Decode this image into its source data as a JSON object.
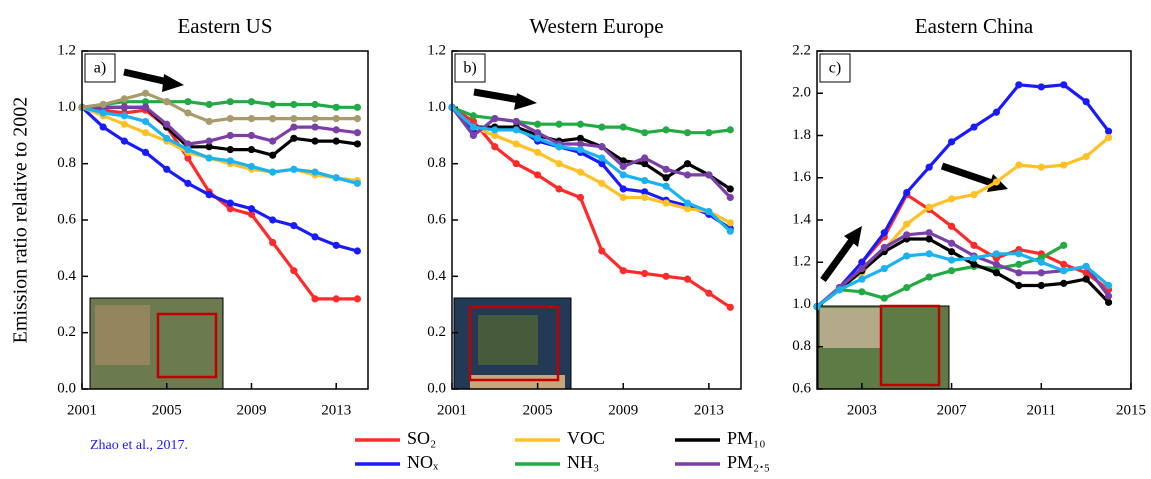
{
  "chart_data": [
    {
      "type": "line",
      "title": "Eastern US",
      "panel_label": "a)",
      "ylabel": "Emission ratio relative to 2002",
      "x": [
        2001,
        2002,
        2003,
        2004,
        2005,
        2006,
        2007,
        2008,
        2009,
        2010,
        2011,
        2012,
        2013,
        2014
      ],
      "xlim": [
        2001,
        2014.5
      ],
      "xticks": [
        2001,
        2005,
        2009,
        2013
      ],
      "ylim": [
        0,
        1.2
      ],
      "yticks": [
        {
          "value": 0,
          "label": "0.0"
        },
        {
          "value": 0.2,
          "label": "0.2"
        },
        {
          "value": 0.4,
          "label": "0.4"
        },
        {
          "value": 0.6,
          "label": "0.6"
        },
        {
          "value": 0.8,
          "label": "0.8"
        },
        {
          "value": 1,
          "label": "1.0"
        },
        {
          "value": 1.2,
          "label": "1.2"
        }
      ],
      "series": [
        {
          "name": "SO₂",
          "color": "#ff2a2a",
          "values": [
            1.0,
            0.99,
            0.98,
            0.99,
            0.93,
            0.82,
            0.7,
            0.64,
            0.62,
            0.52,
            0.42,
            0.32,
            0.32,
            0.32
          ]
        },
        {
          "name": "NOₓ",
          "color": "#1a1aff",
          "values": [
            1.0,
            0.93,
            0.88,
            0.84,
            0.78,
            0.73,
            0.69,
            0.66,
            0.64,
            0.6,
            0.58,
            0.54,
            0.51,
            0.49
          ]
        },
        {
          "name": "VOC",
          "color": "#ffc125",
          "values": [
            1.0,
            0.97,
            0.94,
            0.91,
            0.88,
            0.84,
            0.82,
            0.8,
            0.78,
            0.77,
            0.78,
            0.76,
            0.75,
            0.74
          ]
        },
        {
          "name": "NH₃",
          "color": "#22aa44",
          "values": [
            1.0,
            1.01,
            1.02,
            1.02,
            1.02,
            1.02,
            1.01,
            1.02,
            1.02,
            1.01,
            1.01,
            1.01,
            1.0,
            1.0
          ]
        },
        {
          "name": "PM₁₀",
          "color": "#000000",
          "values": [
            1.0,
            1.0,
            1.0,
            1.0,
            0.93,
            0.86,
            0.86,
            0.85,
            0.85,
            0.83,
            0.89,
            0.88,
            0.88,
            0.87
          ]
        },
        {
          "name": "PM₂.₅",
          "color": "#7b3fa8",
          "values": [
            1.0,
            1.0,
            1.0,
            1.0,
            0.94,
            0.87,
            0.88,
            0.9,
            0.9,
            0.88,
            0.93,
            0.93,
            0.92,
            0.91
          ]
        },
        {
          "color": "#1ab2f0",
          "values": [
            1.0,
            0.98,
            0.97,
            0.95,
            0.89,
            0.85,
            0.82,
            0.81,
            0.79,
            0.77,
            0.78,
            0.77,
            0.75,
            0.73
          ]
        },
        {
          "color": "#a89a6a",
          "values": [
            1.0,
            1.01,
            1.03,
            1.05,
            1.02,
            0.98,
            0.95,
            0.96,
            0.96,
            0.96,
            0.96,
            0.96,
            0.96,
            0.96
          ]
        }
      ]
    },
    {
      "type": "line",
      "title": "Western Europe",
      "panel_label": "b)",
      "x": [
        2001,
        2002,
        2003,
        2004,
        2005,
        2006,
        2007,
        2008,
        2009,
        2010,
        2011,
        2012,
        2013,
        2014
      ],
      "xlim": [
        2001,
        2014.5
      ],
      "xticks": [
        2001,
        2005,
        2009,
        2013
      ],
      "ylim": [
        0,
        1.2
      ],
      "yticks": [
        {
          "value": 0,
          "label": "0.0"
        },
        {
          "value": 0.2,
          "label": "0.2"
        },
        {
          "value": 0.4,
          "label": "0.4"
        },
        {
          "value": 0.6,
          "label": "0.6"
        },
        {
          "value": 0.8,
          "label": "0.8"
        },
        {
          "value": 1,
          "label": "1.0"
        },
        {
          "value": 1.2,
          "label": "1.2"
        }
      ],
      "series": [
        {
          "name": "SO₂",
          "color": "#ff2a2a",
          "values": [
            1.0,
            0.95,
            0.86,
            0.8,
            0.76,
            0.71,
            0.68,
            0.49,
            0.42,
            0.41,
            0.4,
            0.39,
            0.34,
            0.29
          ]
        },
        {
          "name": "NOₓ",
          "color": "#1a1aff",
          "values": [
            1.0,
            0.92,
            0.93,
            0.93,
            0.88,
            0.86,
            0.84,
            0.8,
            0.71,
            0.7,
            0.67,
            0.65,
            0.62,
            0.57
          ]
        },
        {
          "name": "VOC",
          "color": "#ffc125",
          "values": [
            1.0,
            0.93,
            0.9,
            0.87,
            0.84,
            0.8,
            0.77,
            0.73,
            0.68,
            0.68,
            0.66,
            0.64,
            0.63,
            0.59
          ]
        },
        {
          "name": "NH₃",
          "color": "#22aa44",
          "values": [
            1.0,
            0.97,
            0.96,
            0.95,
            0.94,
            0.94,
            0.94,
            0.93,
            0.93,
            0.91,
            0.92,
            0.91,
            0.91,
            0.92
          ]
        },
        {
          "name": "PM₁₀",
          "color": "#000000",
          "values": [
            1.0,
            0.93,
            0.93,
            0.93,
            0.9,
            0.88,
            0.89,
            0.86,
            0.81,
            0.8,
            0.75,
            0.8,
            0.76,
            0.71
          ]
        },
        {
          "name": "PM₂.₅",
          "color": "#7b3fa8",
          "values": [
            1.0,
            0.9,
            0.96,
            0.95,
            0.91,
            0.87,
            0.87,
            0.86,
            0.79,
            0.82,
            0.78,
            0.76,
            0.76,
            0.68
          ]
        },
        {
          "color": "#1ab2f0",
          "values": [
            1.0,
            0.93,
            0.92,
            0.92,
            0.89,
            0.86,
            0.85,
            0.82,
            0.76,
            0.74,
            0.72,
            0.66,
            0.63,
            0.56
          ]
        }
      ]
    },
    {
      "type": "line",
      "title": "Eastern China",
      "panel_label": "c)",
      "x": [
        2001,
        2002,
        2003,
        2004,
        2005,
        2006,
        2007,
        2008,
        2009,
        2010,
        2011,
        2012,
        2013,
        2014
      ],
      "xlim": [
        2001,
        2015
      ],
      "xticks": [
        2003,
        2007,
        2011,
        2015
      ],
      "ylim": [
        0.6,
        2.2
      ],
      "yticks": [
        {
          "value": 0.6,
          "label": "0.6"
        },
        {
          "value": 0.8,
          "label": "0.8"
        },
        {
          "value": 1,
          "label": "1.0"
        },
        {
          "value": 1.2,
          "label": "1.2"
        },
        {
          "value": 1.4,
          "label": "1.4"
        },
        {
          "value": 1.6,
          "label": "1.6"
        },
        {
          "value": 1.8,
          "label": "1.8"
        },
        {
          "value": 2,
          "label": "2.0"
        },
        {
          "value": 2.2,
          "label": "2.2"
        }
      ],
      "series": [
        {
          "name": "SO₂",
          "color": "#ff2a2a",
          "values": [
            0.99,
            1.08,
            1.2,
            1.32,
            1.52,
            1.45,
            1.37,
            1.28,
            1.22,
            1.26,
            1.24,
            1.19,
            1.15,
            1.07
          ]
        },
        {
          "name": "NOₓ",
          "color": "#1a1aff",
          "values": [
            0.99,
            1.08,
            1.2,
            1.34,
            1.53,
            1.65,
            1.77,
            1.84,
            1.91,
            2.04,
            2.03,
            2.04,
            1.96,
            1.82
          ]
        },
        {
          "name": "VOC",
          "color": "#ffc125",
          "values": [
            0.99,
            1.08,
            1.15,
            1.26,
            1.38,
            1.46,
            1.5,
            1.52,
            1.58,
            1.66,
            1.65,
            1.66,
            1.7,
            1.79
          ]
        },
        {
          "name": "NH₃",
          "color": "#22aa44",
          "values": [
            0.99,
            1.07,
            1.06,
            1.03,
            1.08,
            1.13,
            1.16,
            1.18,
            1.17,
            1.19,
            1.22,
            1.28,
            null,
            null
          ]
        },
        {
          "name": "PM₁₀",
          "color": "#000000",
          "values": [
            0.99,
            1.07,
            1.16,
            1.25,
            1.31,
            1.31,
            1.25,
            1.19,
            1.15,
            1.09,
            1.09,
            1.1,
            1.12,
            1.01
          ]
        },
        {
          "name": "PM₂.₅",
          "color": "#7b3fa8",
          "values": [
            0.99,
            1.08,
            1.17,
            1.27,
            1.33,
            1.34,
            1.29,
            1.23,
            1.19,
            1.15,
            1.15,
            1.16,
            1.18,
            1.04
          ]
        },
        {
          "color": "#1ab2f0",
          "values": [
            0.99,
            1.07,
            1.12,
            1.17,
            1.23,
            1.24,
            1.21,
            1.22,
            1.24,
            1.24,
            1.2,
            1.16,
            1.18,
            1.09
          ]
        }
      ]
    }
  ],
  "source": "Zhao et al., 2017."
}
